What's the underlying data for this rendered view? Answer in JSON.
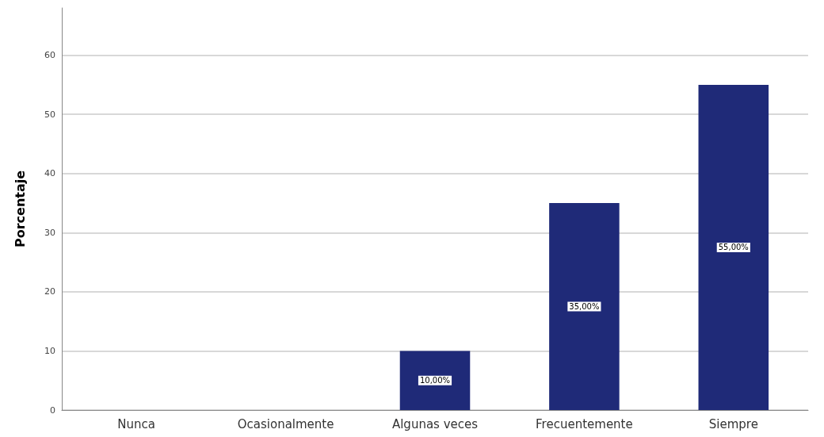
{
  "chart_data": {
    "type": "bar",
    "ylabel": "Porcentaje",
    "categories": [
      "Nunca",
      "Ocasionalmente",
      "Algunas veces",
      "Frecuentemente",
      "Siempre"
    ],
    "values": [
      0,
      0,
      10,
      35,
      55
    ],
    "value_labels": [
      null,
      null,
      "10,00%",
      "35,00%",
      "55,00%"
    ],
    "color": "#1f2a78",
    "ylim": [
      0,
      68
    ],
    "yticks": [
      0,
      10,
      20,
      30,
      40,
      50,
      60
    ],
    "grid": "y"
  }
}
